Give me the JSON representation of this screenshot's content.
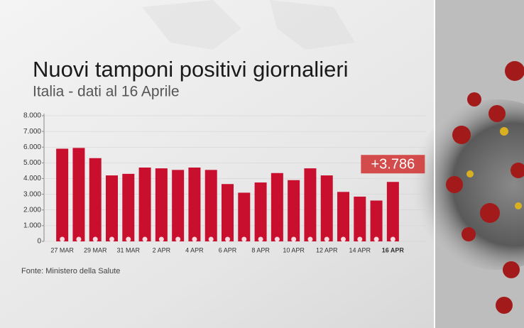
{
  "chart_data": {
    "type": "bar",
    "title": "Nuovi tamponi positivi giornalieri",
    "subtitle": "Italia - dati al 16 Aprile",
    "source": "Fonte: Ministero della Salute",
    "categories": [
      "27 MAR",
      null,
      "29 MAR",
      null,
      "31 MAR",
      null,
      "2 APR",
      null,
      "4 APR",
      null,
      "6 APR",
      null,
      "8 APR",
      null,
      "10 APR",
      null,
      "12 APR",
      null,
      "14 APR",
      null,
      "16 APR"
    ],
    "values": [
      5900,
      5950,
      5300,
      4200,
      4300,
      4700,
      4650,
      4550,
      4700,
      4550,
      3650,
      3100,
      3750,
      4350,
      3900,
      4650,
      4200,
      3150,
      2850,
      2600,
      3786
    ],
    "value_labels": [
      null,
      null,
      null,
      null,
      null,
      null,
      null,
      null,
      null,
      null,
      null,
      null,
      null,
      null,
      null,
      null,
      null,
      null,
      null,
      null,
      "+3.786"
    ],
    "color": "#c8102e",
    "ylim": [
      0,
      8000
    ],
    "yticks": [
      0,
      {
        "value": 1000,
        "label": "1.000"
      },
      {
        "value": 2000,
        "label": "2.000"
      },
      {
        "value": 3000,
        "label": "3.000"
      },
      {
        "value": 4000,
        "label": "4.000"
      },
      {
        "value": 5000,
        "label": "5.000"
      },
      {
        "value": 6000,
        "label": "6.000"
      },
      {
        "value": 7000,
        "label": "7.000"
      },
      {
        "value": 8000,
        "label": "8.000"
      }
    ],
    "grid": true
  }
}
